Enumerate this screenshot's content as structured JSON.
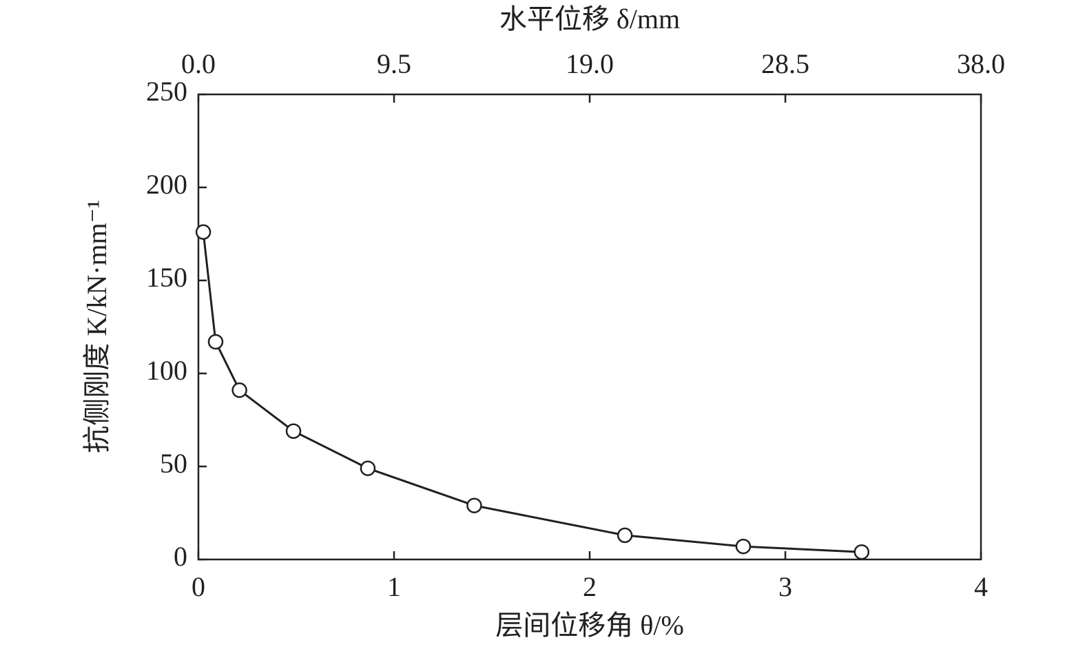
{
  "chart_data": {
    "type": "line",
    "x_label": "层间位移角 θ/%",
    "x2_label": "水平位移 δ/mm",
    "y_label": "抗侧刚度 K/kN·mm⁻¹",
    "x": [
      0.025,
      0.088,
      0.21,
      0.486,
      0.866,
      1.41,
      2.18,
      2.785,
      3.39
    ],
    "series": [
      {
        "color": "#231f20",
        "values": [
          176,
          117,
          91,
          69,
          49,
          29,
          13,
          7,
          4
        ]
      }
    ],
    "xlim": [
      0,
      4
    ],
    "xticks": [
      0,
      1,
      2,
      3,
      4
    ],
    "x2lim": [
      0,
      38
    ],
    "x2ticks": [
      {
        "value": 0,
        "label": "0.0"
      },
      {
        "value": 9.5,
        "label": "9.5"
      },
      {
        "value": 19,
        "label": "19.0"
      },
      {
        "value": 28.5,
        "label": "28.5"
      },
      {
        "value": 38,
        "label": "38.0"
      }
    ],
    "ylim": [
      0,
      250
    ],
    "yticks": [
      0,
      50,
      100,
      150,
      200,
      250
    ],
    "grid": false
  }
}
